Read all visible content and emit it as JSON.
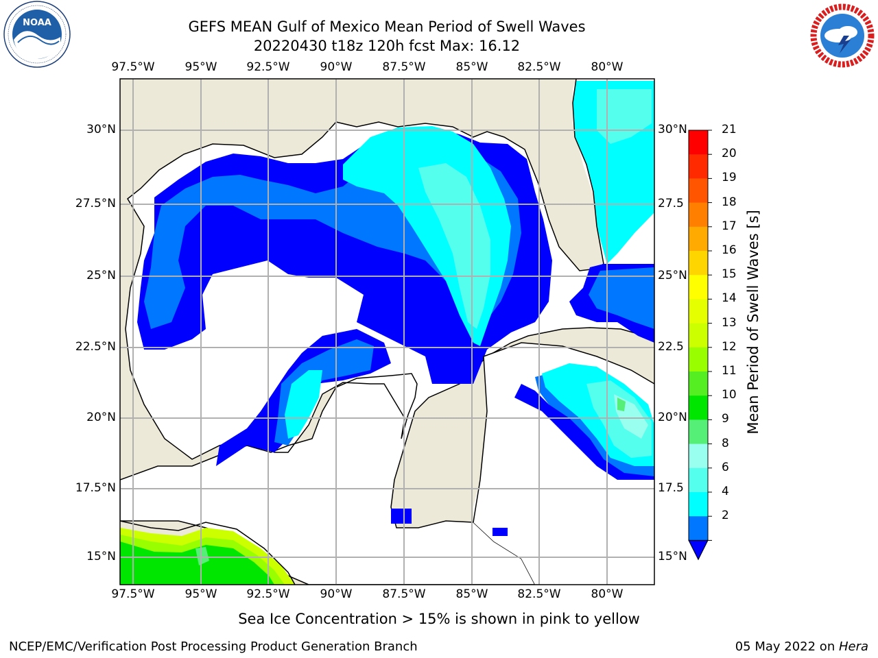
{
  "header": {
    "title_line1": "GEFS MEAN Gulf of Mexico Mean Period of Swell Waves",
    "title_line2": "20220430 t18z 120h fcst   Max: 16.12"
  },
  "logos": {
    "left": {
      "name": "noaa-logo",
      "text": "NOAA",
      "ring_text": "NATIONAL OCEANIC AND ATMOSPHERIC ADMINISTRATION · U.S. DEPARTMENT OF COMMERCE"
    },
    "right": {
      "name": "nws-logo",
      "ring_text": "NATIONAL WEATHER SERVICE"
    }
  },
  "map": {
    "lon_labels": [
      "97.5°W",
      "95°W",
      "92.5°W",
      "90°W",
      "87.5°W",
      "85°W",
      "82.5°W",
      "80°W"
    ],
    "lat_labels_left": [
      "30°N",
      "27.5°N",
      "25°N",
      "22.5°N",
      "20°N",
      "17.5°N",
      "15°N"
    ],
    "lat_labels_right": [
      "30°N",
      "27.5",
      "25°N",
      "22.5",
      "20°N",
      "17.5",
      "15°N"
    ],
    "colors": {
      "land": "#ede9d8",
      "ocean_no_data": "#ffffff",
      "grid": "#b0b0b0"
    }
  },
  "colorbar": {
    "label": "Mean Period of Swell Waves [s]",
    "ticks": [
      "21",
      "20",
      "19",
      "18",
      "17",
      "16",
      "15",
      "14",
      "13",
      "12",
      "11",
      "10",
      "9",
      "8",
      "6",
      "4",
      "2"
    ],
    "colors": [
      "#ff0000",
      "#ff2a00",
      "#ff5500",
      "#ff8000",
      "#ffaa00",
      "#ffd500",
      "#ffff00",
      "#e6ff00",
      "#ccff00",
      "#99ff00",
      "#55ee22",
      "#00e600",
      "#55ee77",
      "#99ffee",
      "#55ffee",
      "#00ffff",
      "#0077ff"
    ],
    "extend_color": "#0000ff"
  },
  "footer": {
    "note": "Sea Ice Concentration > 15% is shown in pink to yellow",
    "left": "NCEP/EMC/Verification Post Processing Product Generation Branch",
    "date": "05 May 2022 on ",
    "machine": "Hera"
  }
}
